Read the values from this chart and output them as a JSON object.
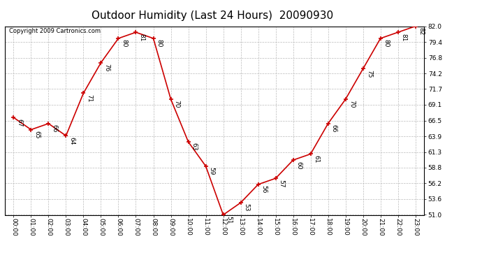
{
  "title": "Outdoor Humidity (Last 24 Hours)  20090930",
  "copyright": "Copyright 2009 Cartronics.com",
  "x_labels": [
    "00:00",
    "01:00",
    "02:00",
    "03:00",
    "04:00",
    "05:00",
    "06:00",
    "07:00",
    "08:00",
    "09:00",
    "10:00",
    "11:00",
    "12:00",
    "13:00",
    "14:00",
    "15:00",
    "16:00",
    "17:00",
    "18:00",
    "19:00",
    "20:00",
    "21:00",
    "22:00",
    "23:00"
  ],
  "y_values": [
    67,
    65,
    66,
    64,
    71,
    76,
    80,
    81,
    80,
    70,
    63,
    59,
    51,
    53,
    56,
    57,
    60,
    61,
    66,
    70,
    75,
    80,
    81,
    82
  ],
  "y_ticks": [
    51.0,
    53.6,
    56.2,
    58.8,
    61.3,
    63.9,
    66.5,
    69.1,
    71.7,
    74.2,
    76.8,
    79.4,
    82.0
  ],
  "y_tick_labels": [
    "51.0",
    "53.6",
    "56.2",
    "58.8",
    "61.3",
    "63.9",
    "66.5",
    "69.1",
    "71.7",
    "74.2",
    "76.8",
    "79.4",
    "82.0"
  ],
  "ylim": [
    51.0,
    82.0
  ],
  "line_color": "#cc0000",
  "marker_color": "#cc0000",
  "bg_color": "#ffffff",
  "grid_color": "#bbbbbb",
  "title_fontsize": 11,
  "label_fontsize": 6.5,
  "annotation_fontsize": 6.5,
  "copyright_fontsize": 6
}
